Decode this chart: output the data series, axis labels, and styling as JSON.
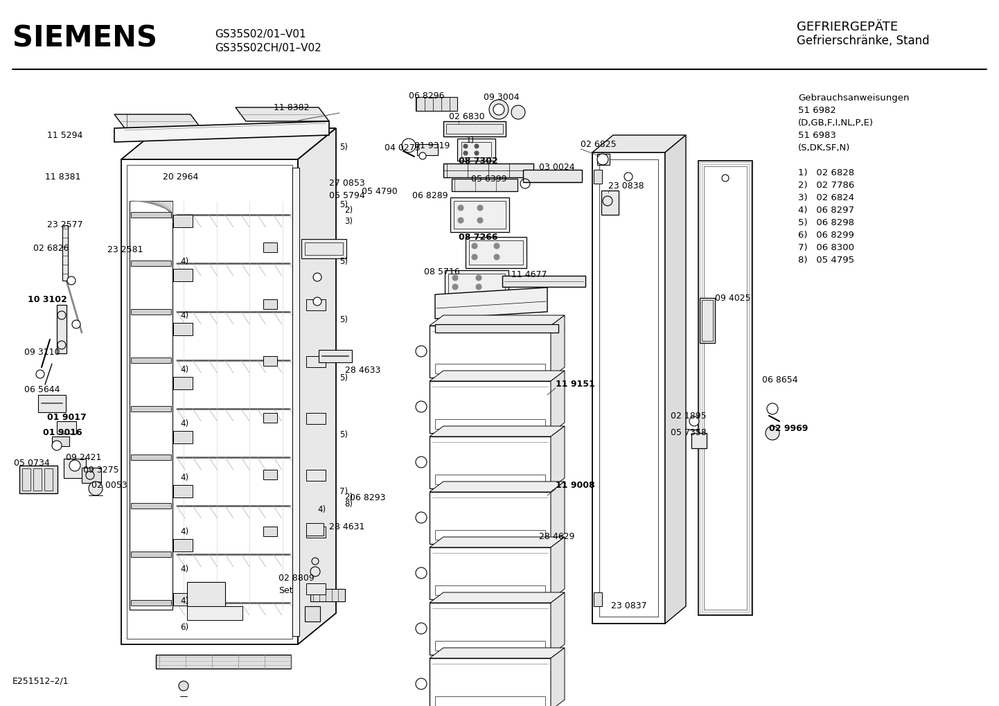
{
  "title_left": "SIEMENS",
  "model_line1": "GS35S02/01–V01",
  "model_line2": "GS35S02CH/01–V02",
  "title_right_line1": "GEFRIERGЕРÄTE",
  "title_right_line2": "Gefrierschränke, Stand",
  "footer_left": "E251512–2/1",
  "info_block": [
    "Gebrauchsanweisungen",
    "51 6982",
    "(D,GB,F,I,NL,P,E)",
    "51 6983",
    "(S,DK,SF,N)",
    "",
    "1)   02 6828",
    "2)   02 7786",
    "3)   02 6824",
    "4)   06 8297",
    "5)   06 8298",
    "6)   06 8299",
    "7)   06 8300",
    "8)   05 4795"
  ],
  "bg_color": "#ffffff",
  "text_color": "#000000"
}
